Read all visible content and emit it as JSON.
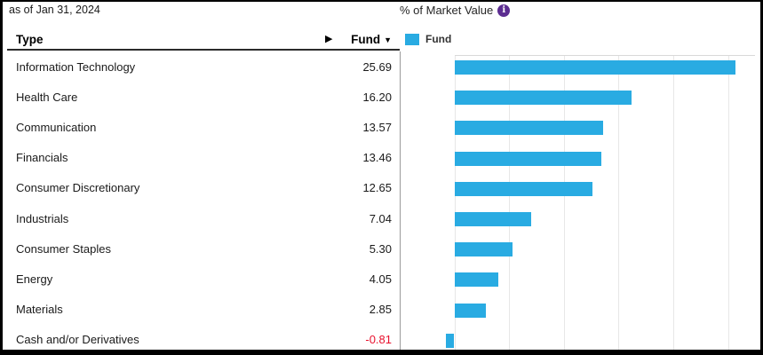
{
  "header": {
    "as_of": "as of Jan 31, 2024",
    "chart_title": "% of Market Value",
    "info_glyph": "i"
  },
  "table": {
    "columns": {
      "type": "Type",
      "fund": "Fund"
    },
    "sort_indicator": "▼",
    "scroll_arrow": "▶",
    "rows": [
      {
        "label": "Information Technology",
        "value": "25.69"
      },
      {
        "label": "Health Care",
        "value": "16.20"
      },
      {
        "label": "Communication",
        "value": "13.57"
      },
      {
        "label": "Financials",
        "value": "13.46"
      },
      {
        "label": "Consumer Discretionary",
        "value": "12.65"
      },
      {
        "label": "Industrials",
        "value": "7.04"
      },
      {
        "label": "Consumer Staples",
        "value": "5.30"
      },
      {
        "label": "Energy",
        "value": "4.05"
      },
      {
        "label": "Materials",
        "value": "2.85"
      },
      {
        "label": "Cash and/or Derivatives",
        "value": "-0.81"
      }
    ]
  },
  "legend": {
    "label": "Fund"
  },
  "chart_data": {
    "type": "bar",
    "orientation": "horizontal",
    "title": "% of Market Value",
    "categories": [
      "Information Technology",
      "Health Care",
      "Communication",
      "Financials",
      "Consumer Discretionary",
      "Industrials",
      "Consumer Staples",
      "Energy",
      "Materials",
      "Cash and/or Derivatives"
    ],
    "series": [
      {
        "name": "Fund",
        "values": [
          25.69,
          16.2,
          13.57,
          13.46,
          12.65,
          7.04,
          5.3,
          4.05,
          2.85,
          -0.81
        ]
      }
    ],
    "x_gridlines": [
      0,
      5,
      10,
      15,
      20,
      25
    ],
    "xlim": [
      -4.6,
      27.5
    ],
    "grid": true,
    "legend_position": "top-left",
    "bar_color": "#29abe2"
  },
  "colors": {
    "bar_blue": "#29abe2",
    "negative_red": "#e8112d",
    "info_purple": "#5c2d91",
    "gridline": "#e7e7e7",
    "divider": "#9a9a9a",
    "text": "#1a1a1a"
  }
}
